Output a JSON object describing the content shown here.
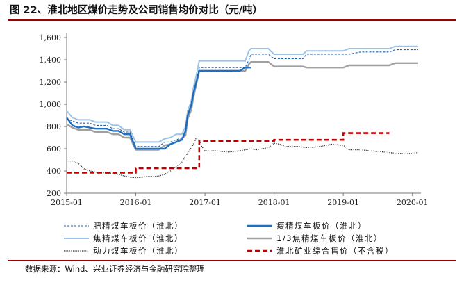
{
  "title": "图 22、淮北地区煤价走势及公司销售均价对比（元/吨）",
  "source": "数据来源：Wind、兴业证券经济与金融研究院整理",
  "chart_data": {
    "type": "line",
    "x_ticks": [
      "2015-01",
      "2016-01",
      "2017-01",
      "2018-01",
      "2019-01",
      "2020-01"
    ],
    "y_ticks": [
      200,
      400,
      600,
      800,
      "1,000",
      "1,200",
      "1,400",
      "1,600"
    ],
    "ylim": [
      200,
      1600
    ],
    "xlim": [
      "2015-01",
      "2020-02"
    ],
    "grid": false,
    "legend_position": "bottom",
    "series": [
      {
        "name": "肥精煤车板价（淮北）",
        "color": "#1f5fa8",
        "style": "dashed-thin",
        "points": [
          [
            "2015-01",
            870
          ],
          [
            "2015-02",
            850
          ],
          [
            "2015-03",
            830
          ],
          [
            "2015-04",
            830
          ],
          [
            "2015-05",
            830
          ],
          [
            "2015-06",
            810
          ],
          [
            "2015-08",
            810
          ],
          [
            "2015-09",
            780
          ],
          [
            "2015-10",
            780
          ],
          [
            "2015-11",
            750
          ],
          [
            "2015-12",
            750
          ],
          [
            "2016-01",
            620
          ],
          [
            "2016-05",
            620
          ],
          [
            "2016-06",
            660
          ],
          [
            "2016-07",
            660
          ],
          [
            "2016-08",
            680
          ],
          [
            "2016-09",
            700
          ],
          [
            "2016-09-20",
            760
          ],
          [
            "2016-10",
            900
          ],
          [
            "2016-10-20",
            1000
          ],
          [
            "2016-11",
            1100
          ],
          [
            "2016-11-15",
            1200
          ],
          [
            "2016-12",
            1330
          ],
          [
            "2017-08",
            1330
          ],
          [
            "2017-08-20",
            1400
          ],
          [
            "2017-09",
            1450
          ],
          [
            "2017-12",
            1450
          ],
          [
            "2018-01",
            1410
          ],
          [
            "2018-06",
            1410
          ],
          [
            "2018-06-20",
            1450
          ],
          [
            "2019-02",
            1450
          ],
          [
            "2019-04",
            1470
          ],
          [
            "2019-09",
            1470
          ],
          [
            "2019-10",
            1490
          ],
          [
            "2020-02",
            1490
          ]
        ]
      },
      {
        "name": "瘦精煤车板价（淮北）",
        "color": "#1c6fc2",
        "style": "solid-thick",
        "points": [
          [
            "2015-01",
            880
          ],
          [
            "2015-02",
            810
          ],
          [
            "2015-03",
            790
          ],
          [
            "2015-04",
            800
          ],
          [
            "2015-06",
            780
          ],
          [
            "2015-08",
            780
          ],
          [
            "2015-09",
            760
          ],
          [
            "2015-10",
            760
          ],
          [
            "2015-11",
            730
          ],
          [
            "2015-12",
            730
          ],
          [
            "2016-01",
            600
          ],
          [
            "2016-06",
            600
          ],
          [
            "2016-07",
            640
          ],
          [
            "2016-08",
            660
          ],
          [
            "2016-09",
            680
          ],
          [
            "2016-09-20",
            760
          ],
          [
            "2016-10",
            900
          ],
          [
            "2016-10-20",
            990
          ],
          [
            "2016-11",
            1100
          ],
          [
            "2016-11-15",
            1190
          ],
          [
            "2016-12",
            1300
          ],
          [
            "2017-07",
            1300
          ],
          [
            "2017-08",
            1330
          ],
          [
            "2017-09",
            1330
          ]
        ]
      },
      {
        "name": "焦精煤车板价（淮北）",
        "color": "#9cc3e6",
        "style": "solid",
        "points": [
          [
            "2015-01",
            940
          ],
          [
            "2015-02",
            880
          ],
          [
            "2015-03",
            860
          ],
          [
            "2015-05",
            860
          ],
          [
            "2015-06",
            840
          ],
          [
            "2015-08",
            840
          ],
          [
            "2015-09",
            810
          ],
          [
            "2015-10",
            810
          ],
          [
            "2015-11",
            770
          ],
          [
            "2015-12",
            770
          ],
          [
            "2016-01",
            660
          ],
          [
            "2016-05",
            660
          ],
          [
            "2016-06",
            690
          ],
          [
            "2016-07",
            700
          ],
          [
            "2016-08",
            730
          ],
          [
            "2016-09",
            730
          ],
          [
            "2016-09-20",
            800
          ],
          [
            "2016-10",
            940
          ],
          [
            "2016-10-20",
            1030
          ],
          [
            "2016-11",
            1150
          ],
          [
            "2016-11-15",
            1250
          ],
          [
            "2016-12",
            1390
          ],
          [
            "2017-08",
            1390
          ],
          [
            "2017-08-20",
            1480
          ],
          [
            "2017-09",
            1500
          ],
          [
            "2017-12",
            1500
          ],
          [
            "2018-01",
            1450
          ],
          [
            "2018-06",
            1450
          ],
          [
            "2018-06-20",
            1480
          ],
          [
            "2019-01",
            1480
          ],
          [
            "2019-02",
            1500
          ],
          [
            "2019-09",
            1500
          ],
          [
            "2019-10",
            1520
          ],
          [
            "2020-02",
            1520
          ]
        ]
      },
      {
        "name": "1/3焦精煤车板价（淮北）",
        "color": "#a0a0a0",
        "style": "solid-thick",
        "points": [
          [
            "2015-01",
            820
          ],
          [
            "2015-02",
            790
          ],
          [
            "2015-03",
            770
          ],
          [
            "2015-05",
            770
          ],
          [
            "2015-06",
            750
          ],
          [
            "2015-08",
            750
          ],
          [
            "2015-09",
            730
          ],
          [
            "2015-10",
            730
          ],
          [
            "2015-11",
            700
          ],
          [
            "2015-12",
            700
          ],
          [
            "2016-01",
            590
          ],
          [
            "2016-05",
            590
          ],
          [
            "2016-06",
            630
          ],
          [
            "2016-07",
            640
          ],
          [
            "2016-08",
            660
          ],
          [
            "2016-09",
            690
          ],
          [
            "2016-09-20",
            720
          ],
          [
            "2016-10",
            870
          ],
          [
            "2016-10-20",
            950
          ],
          [
            "2016-11",
            1060
          ],
          [
            "2016-11-15",
            1170
          ],
          [
            "2016-12",
            1300
          ],
          [
            "2017-08",
            1300
          ],
          [
            "2017-08-20",
            1360
          ],
          [
            "2017-09",
            1380
          ],
          [
            "2017-12",
            1380
          ],
          [
            "2018-01",
            1340
          ],
          [
            "2018-06",
            1340
          ],
          [
            "2018-06-20",
            1330
          ],
          [
            "2019-01",
            1330
          ],
          [
            "2019-02",
            1350
          ],
          [
            "2019-09",
            1350
          ],
          [
            "2019-10",
            1370
          ],
          [
            "2020-02",
            1370
          ]
        ]
      },
      {
        "name": "动力煤车板价（淮北）",
        "color": "#222222",
        "style": "dotted",
        "points": [
          [
            "2015-01",
            490
          ],
          [
            "2015-02",
            490
          ],
          [
            "2015-03",
            470
          ],
          [
            "2015-04",
            420
          ],
          [
            "2015-05",
            400
          ],
          [
            "2015-06",
            390
          ],
          [
            "2015-07",
            385
          ],
          [
            "2015-08",
            380
          ],
          [
            "2015-09",
            380
          ],
          [
            "2015-10",
            370
          ],
          [
            "2015-11",
            355
          ],
          [
            "2015-12",
            345
          ],
          [
            "2016-01",
            340
          ],
          [
            "2016-02",
            345
          ],
          [
            "2016-03",
            350
          ],
          [
            "2016-04",
            350
          ],
          [
            "2016-05",
            355
          ],
          [
            "2016-06",
            370
          ],
          [
            "2016-07",
            400
          ],
          [
            "2016-08",
            440
          ],
          [
            "2016-09",
            480
          ],
          [
            "2016-10",
            560
          ],
          [
            "2016-11",
            640
          ],
          [
            "2016-11-15",
            695
          ],
          [
            "2016-12",
            670
          ],
          [
            "2016-12-15",
            620
          ],
          [
            "2017-01",
            580
          ],
          [
            "2017-03",
            580
          ],
          [
            "2017-05",
            570
          ],
          [
            "2017-07",
            580
          ],
          [
            "2017-08",
            590
          ],
          [
            "2017-09",
            600
          ],
          [
            "2017-10",
            590
          ],
          [
            "2017-11",
            600
          ],
          [
            "2017-12",
            610
          ],
          [
            "2018-01",
            650
          ],
          [
            "2018-02",
            640
          ],
          [
            "2018-03",
            620
          ],
          [
            "2018-05",
            620
          ],
          [
            "2018-07",
            610
          ],
          [
            "2018-09",
            620
          ],
          [
            "2018-11",
            640
          ],
          [
            "2019-01",
            630
          ],
          [
            "2019-02",
            590
          ],
          [
            "2019-04",
            590
          ],
          [
            "2019-06",
            580
          ],
          [
            "2019-08",
            570
          ],
          [
            "2019-10",
            560
          ],
          [
            "2019-12",
            555
          ],
          [
            "2020-02",
            565
          ]
        ]
      },
      {
        "name": "淮北矿业综合售价（不含税）",
        "color": "#c00000",
        "style": "dashed-thick",
        "points": [
          [
            "2015-01",
            385
          ],
          [
            "2016-01",
            385
          ],
          [
            "2016-01",
            425
          ],
          [
            "2016-12",
            425
          ],
          [
            "2016-12",
            670
          ],
          [
            "2018-01",
            670
          ],
          [
            "2018-01",
            680
          ],
          [
            "2019-01",
            680
          ],
          [
            "2019-01",
            740
          ],
          [
            "2019-09",
            740
          ]
        ]
      }
    ]
  }
}
